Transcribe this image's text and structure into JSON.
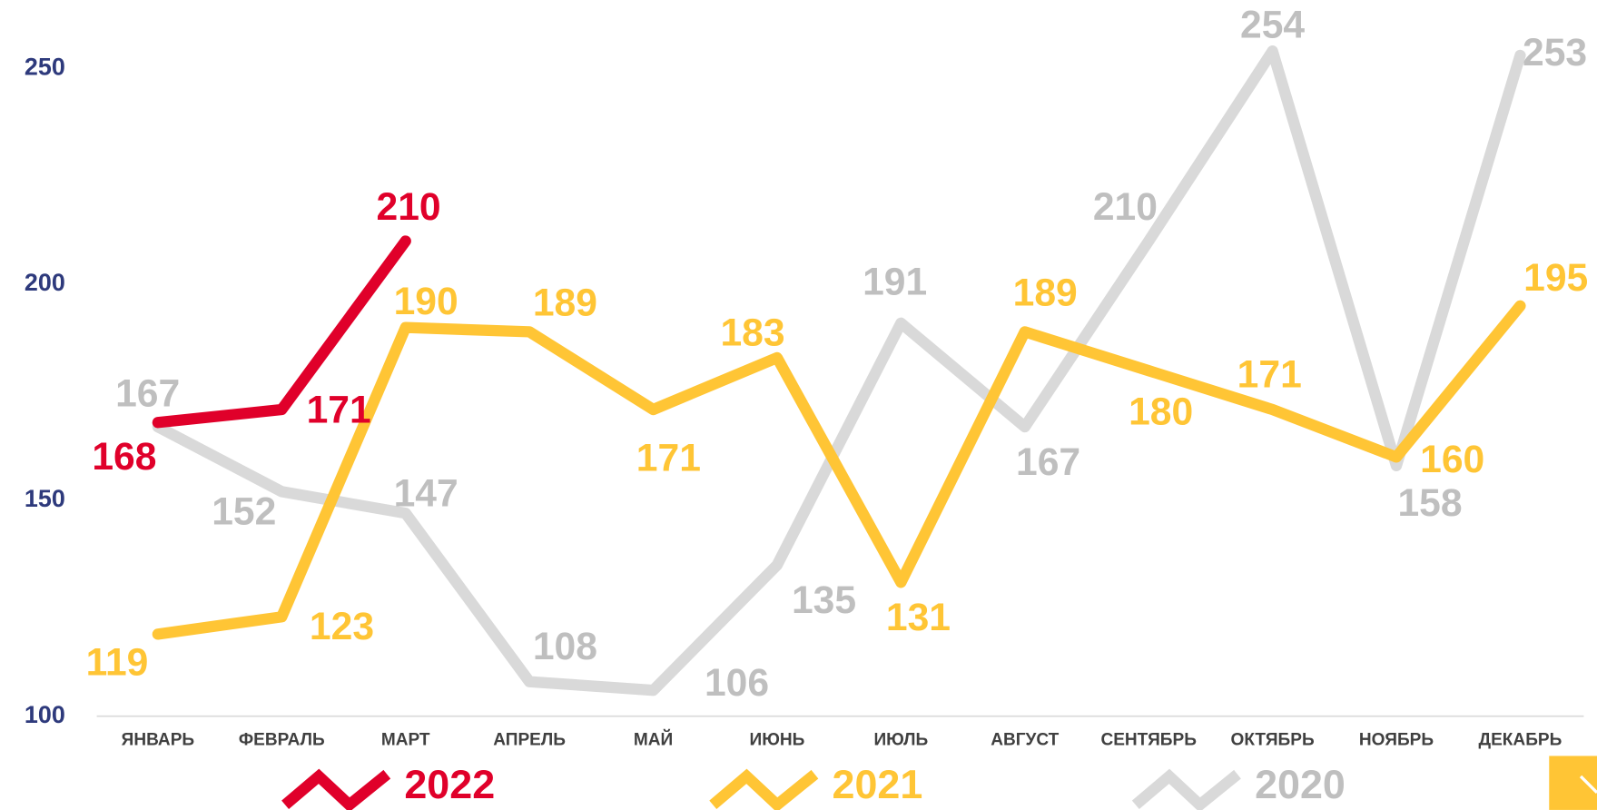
{
  "chart_data": {
    "type": "line",
    "categories": [
      "ЯНВАРЬ",
      "ФЕВРАЛЬ",
      "МАРТ",
      "АПРЕЛЬ",
      "МАЙ",
      "ИЮНЬ",
      "ИЮЛЬ",
      "АВГУСТ",
      "СЕНТЯБРЬ",
      "ОКТЯБРЬ",
      "НОЯБРЬ",
      "ДЕКАБРЬ"
    ],
    "series": [
      {
        "name": "2022",
        "color": "#e0002a",
        "values": [
          168,
          171,
          210,
          null,
          null,
          null,
          null,
          null,
          null,
          null,
          null,
          null
        ]
      },
      {
        "name": "2021",
        "color": "#ffc535",
        "values": [
          119,
          123,
          190,
          189,
          171,
          183,
          131,
          189,
          180,
          171,
          160,
          195
        ]
      },
      {
        "name": "2020",
        "color": "#d9d9d9",
        "values": [
          167,
          152,
          147,
          108,
          106,
          135,
          191,
          167,
          210,
          254,
          158,
          253
        ]
      }
    ],
    "ylim": [
      100,
      260
    ],
    "yticks": [
      100,
      150,
      200,
      250
    ]
  }
}
